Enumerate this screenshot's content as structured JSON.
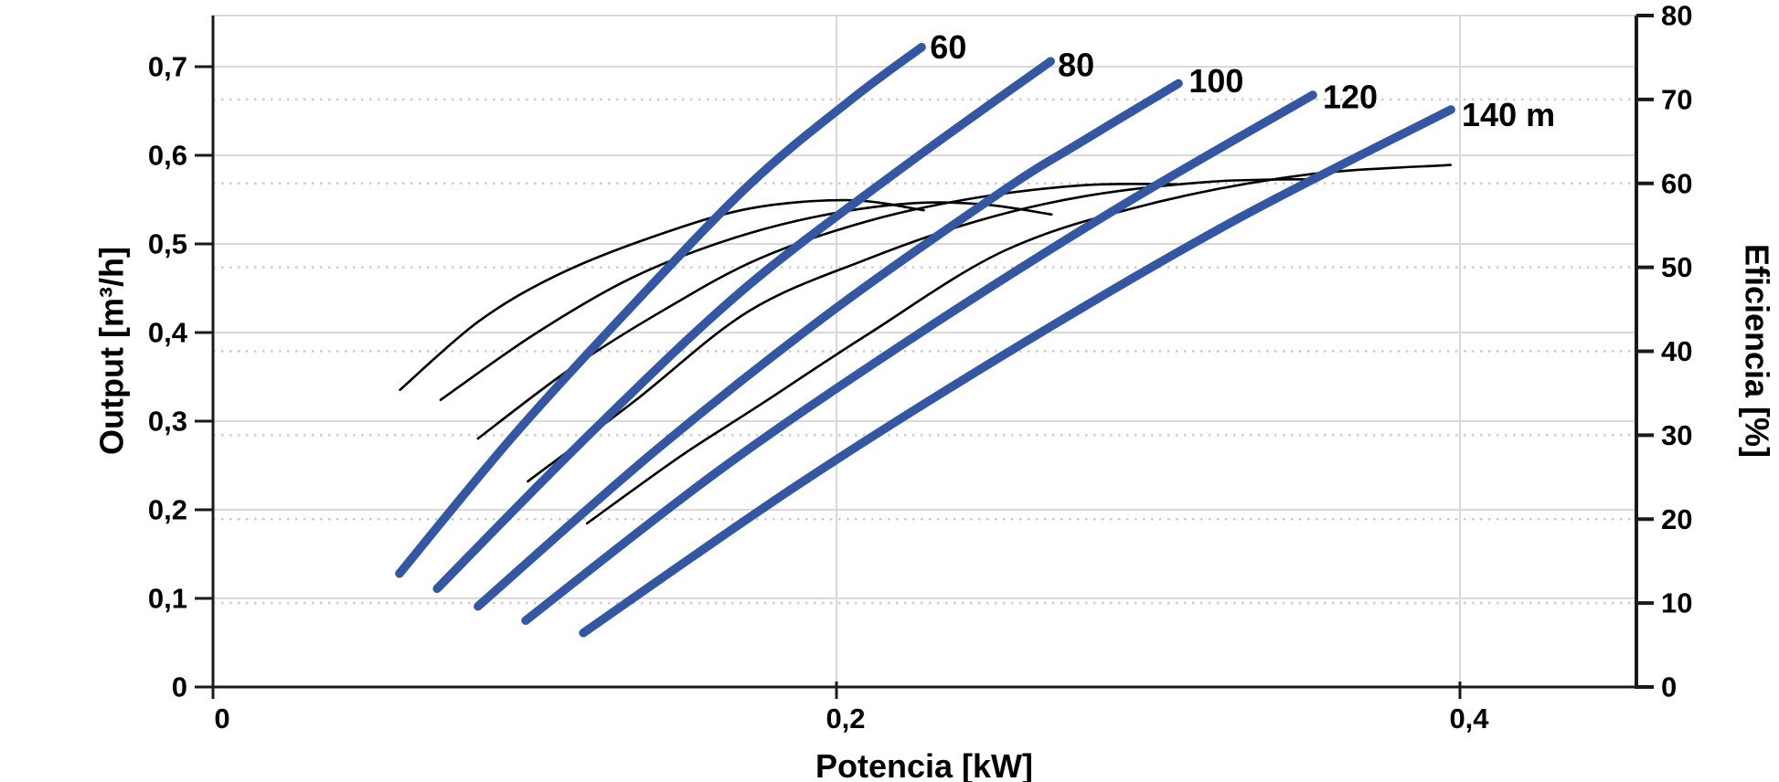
{
  "chart_data": {
    "type": "line",
    "title": "",
    "xlabel": "Potencia [kW]",
    "ylabel_left": "Output [m³/h]",
    "ylabel_right": "Eficiencia [%]",
    "xlim": [
      0,
      0.4566
    ],
    "ylim_left": [
      0,
      0.7577
    ],
    "ylim_right": [
      0,
      80
    ],
    "grid": {
      "major_horizontal": "left-axis 0.1 steps, solid",
      "dotted_horizontal": "right-axis 10 steps, dotted",
      "vertical": "x-axis 0.2 steps, solid"
    },
    "legend_position": "none",
    "x_ticks": [
      {
        "value": 0,
        "label": "0"
      },
      {
        "value": 0.2,
        "label": "0,2"
      },
      {
        "value": 0.4,
        "label": "0,4"
      }
    ],
    "y_left_ticks": [
      {
        "value": 0,
        "label": "0"
      },
      {
        "value": 0.1,
        "label": "0,1"
      },
      {
        "value": 0.2,
        "label": "0,2"
      },
      {
        "value": 0.3,
        "label": "0,3"
      },
      {
        "value": 0.4,
        "label": "0,4"
      },
      {
        "value": 0.5,
        "label": "0,5"
      },
      {
        "value": 0.6,
        "label": "0,6"
      },
      {
        "value": 0.7,
        "label": "0,7"
      }
    ],
    "y_right_ticks": [
      {
        "value": 0,
        "label": "0"
      },
      {
        "value": 10,
        "label": "10"
      },
      {
        "value": 20,
        "label": "20"
      },
      {
        "value": 30,
        "label": "30"
      },
      {
        "value": 40,
        "label": "40"
      },
      {
        "value": 50,
        "label": "50"
      },
      {
        "value": 60,
        "label": "60"
      },
      {
        "value": 70,
        "label": "70"
      },
      {
        "value": 80,
        "label": "80"
      }
    ],
    "pump_curves": [
      {
        "name": "60",
        "head_m": 60,
        "axis": "left",
        "points": [
          [
            0.0598,
            0.128
          ],
          [
            0.096,
            0.282
          ],
          [
            0.1331,
            0.425
          ],
          [
            0.1721,
            0.567
          ],
          [
            0.2044,
            0.662
          ],
          [
            0.2273,
            0.722
          ]
        ]
      },
      {
        "name": "80",
        "head_m": 80,
        "axis": "left",
        "points": [
          [
            0.0719,
            0.111
          ],
          [
            0.121,
            0.286
          ],
          [
            0.17,
            0.448
          ],
          [
            0.22,
            0.583
          ],
          [
            0.2687,
            0.706
          ]
        ]
      },
      {
        "name": "100",
        "head_m": 100,
        "axis": "left",
        "points": [
          [
            0.085,
            0.091
          ],
          [
            0.141,
            0.264
          ],
          [
            0.197,
            0.42
          ],
          [
            0.253,
            0.559
          ],
          [
            0.278,
            0.614
          ],
          [
            0.3097,
            0.681
          ]
        ]
      },
      {
        "name": "120",
        "head_m": 120,
        "axis": "left",
        "points": [
          [
            0.1003,
            0.075
          ],
          [
            0.163,
            0.246
          ],
          [
            0.227,
            0.4
          ],
          [
            0.29,
            0.54
          ],
          [
            0.3528,
            0.668
          ]
        ]
      },
      {
        "name": "140",
        "head_m": 140,
        "axis": "left",
        "points": [
          [
            0.1188,
            0.061
          ],
          [
            0.188,
            0.229
          ],
          [
            0.258,
            0.384
          ],
          [
            0.327,
            0.525
          ],
          [
            0.3971,
            0.6515
          ]
        ]
      }
    ],
    "efficiency_curves": [
      {
        "name": "eff-60",
        "axis": "right",
        "points": [
          [
            0.06,
            35.4
          ],
          [
            0.085,
            43.5
          ],
          [
            0.11,
            49.0
          ],
          [
            0.14,
            53.5
          ],
          [
            0.172,
            57.0
          ],
          [
            0.204,
            58.0
          ],
          [
            0.228,
            56.8
          ]
        ]
      },
      {
        "name": "eff-80",
        "axis": "right",
        "points": [
          [
            0.073,
            34.2
          ],
          [
            0.103,
            42.0
          ],
          [
            0.133,
            48.5
          ],
          [
            0.163,
            53.0
          ],
          [
            0.193,
            56.0
          ],
          [
            0.223,
            57.6
          ],
          [
            0.247,
            57.5
          ],
          [
            0.269,
            56.3
          ]
        ]
      },
      {
        "name": "eff-100",
        "axis": "right",
        "points": [
          [
            0.085,
            29.6
          ],
          [
            0.115,
            38.0
          ],
          [
            0.145,
            45.0
          ],
          [
            0.175,
            51.0
          ],
          [
            0.21,
            55.5
          ],
          [
            0.245,
            58.3
          ],
          [
            0.28,
            59.8
          ],
          [
            0.309,
            59.9
          ]
        ]
      },
      {
        "name": "eff-120",
        "axis": "right",
        "points": [
          [
            0.101,
            24.5
          ],
          [
            0.135,
            34.0
          ],
          [
            0.172,
            44.8
          ],
          [
            0.21,
            51.0
          ],
          [
            0.245,
            55.5
          ],
          [
            0.28,
            58.5
          ],
          [
            0.32,
            60.2
          ],
          [
            0.353,
            60.5
          ]
        ]
      },
      {
        "name": "eff-140",
        "axis": "right",
        "points": [
          [
            0.12,
            19.5
          ],
          [
            0.15,
            27.5
          ],
          [
            0.175,
            33.5
          ],
          [
            0.21,
            42.0
          ],
          [
            0.254,
            52.0
          ],
          [
            0.3,
            57.5
          ],
          [
            0.35,
            61.0
          ],
          [
            0.397,
            62.2
          ]
        ]
      }
    ],
    "curve_labels": [
      {
        "text": "60",
        "P": 0.23,
        "Q": 0.722
      },
      {
        "text": "80",
        "P": 0.271,
        "Q": 0.702
      },
      {
        "text": "100",
        "P": 0.313,
        "Q": 0.684
      },
      {
        "text": "120",
        "P": 0.356,
        "Q": 0.666
      },
      {
        "text": "140 m",
        "P": 0.4006,
        "Q": 0.646
      }
    ],
    "colors": {
      "pump_curve": "#3457A4",
      "efficiency_curve": "#000000",
      "grid_major": "#d9d9d9",
      "grid_dotted": "#cccccc",
      "axis": "#1a1a1a",
      "background": "#ffffff",
      "text": "#000000"
    }
  }
}
